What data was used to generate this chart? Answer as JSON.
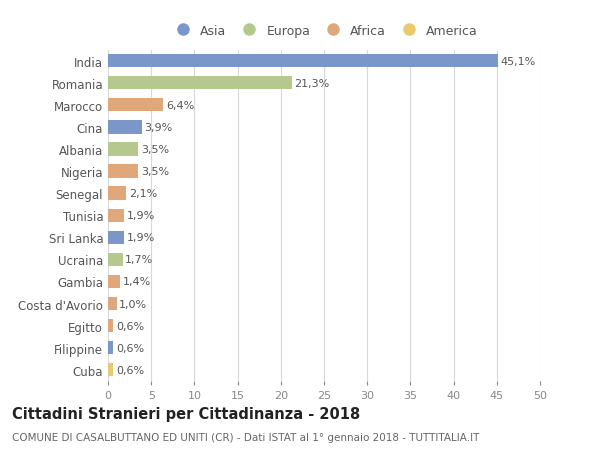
{
  "countries": [
    "India",
    "Romania",
    "Marocco",
    "Cina",
    "Albania",
    "Nigeria",
    "Senegal",
    "Tunisia",
    "Sri Lanka",
    "Ucraina",
    "Gambia",
    "Costa d'Avorio",
    "Egitto",
    "Filippine",
    "Cuba"
  ],
  "values": [
    45.1,
    21.3,
    6.4,
    3.9,
    3.5,
    3.5,
    2.1,
    1.9,
    1.9,
    1.7,
    1.4,
    1.0,
    0.6,
    0.6,
    0.6
  ],
  "labels": [
    "45,1%",
    "21,3%",
    "6,4%",
    "3,9%",
    "3,5%",
    "3,5%",
    "2,1%",
    "1,9%",
    "1,9%",
    "1,7%",
    "1,4%",
    "1,0%",
    "0,6%",
    "0,6%",
    "0,6%"
  ],
  "continents": [
    "Asia",
    "Europa",
    "Africa",
    "Asia",
    "Europa",
    "Africa",
    "Africa",
    "Africa",
    "Asia",
    "Europa",
    "Africa",
    "Africa",
    "Africa",
    "Asia",
    "America"
  ],
  "continent_colors": {
    "Asia": "#7b96c9",
    "Europa": "#b5c98e",
    "Africa": "#e0a87a",
    "America": "#e8c96e"
  },
  "legend_order": [
    "Asia",
    "Europa",
    "Africa",
    "America"
  ],
  "xlim": [
    0,
    50
  ],
  "xticks": [
    0,
    5,
    10,
    15,
    20,
    25,
    30,
    35,
    40,
    45,
    50
  ],
  "title": "Cittadini Stranieri per Cittadinanza - 2018",
  "subtitle": "COMUNE DI CASALBUTTANO ED UNITI (CR) - Dati ISTAT al 1° gennaio 2018 - TUTTITALIA.IT",
  "bg_color": "#ffffff",
  "grid_color": "#d8d8d8",
  "bar_height": 0.6,
  "label_fontsize": 8,
  "ytick_fontsize": 8.5,
  "xtick_fontsize": 8,
  "title_fontsize": 10.5,
  "subtitle_fontsize": 7.5
}
